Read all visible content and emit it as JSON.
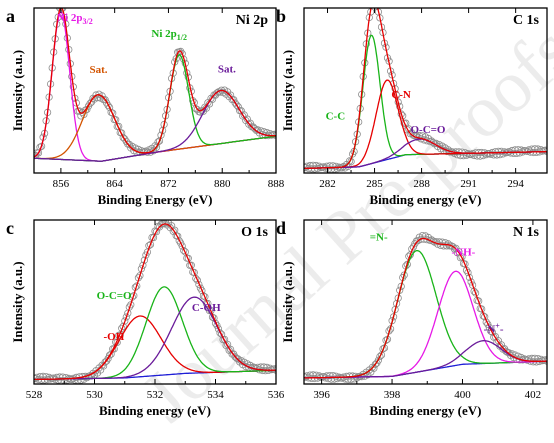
{
  "watermark": "Journal Pre-proofs",
  "chart_data": [
    {
      "type": "line",
      "panel": "a",
      "title": "Ni 2p",
      "xlabel": "Binding Energy (eV)",
      "ylabel": "Intensity (a.u.)",
      "xlim": [
        852,
        888
      ],
      "xticks": [
        856,
        864,
        872,
        880,
        888
      ],
      "x_tick_labels": [
        "856",
        "864",
        "872",
        "880",
        "888"
      ],
      "peaks": [
        {
          "name": "Ni 2p3/2",
          "label": "Ni 2p3/2",
          "center": 856.0,
          "height": 1.0,
          "width": 1.3,
          "color": "#e619e6"
        },
        {
          "name": "Sat. (2p3/2)",
          "label": "Sat.",
          "center": 861.6,
          "height": 0.45,
          "width": 2.4,
          "color": "#d35400"
        },
        {
          "name": "Ni 2p1/2",
          "label": "Ni 2p1/2",
          "center": 873.6,
          "height": 0.64,
          "width": 1.4,
          "color": "#19b419"
        },
        {
          "name": "Sat. (2p1/2)",
          "label": "Sat.",
          "center": 879.8,
          "height": 0.36,
          "width": 2.7,
          "color": "#6a1b9a"
        }
      ],
      "baseline": [
        {
          "x": 852,
          "y": 0.1
        },
        {
          "x": 862,
          "y": 0.08
        },
        {
          "x": 870,
          "y": 0.14
        },
        {
          "x": 888,
          "y": 0.25
        }
      ],
      "baseline_color": "#6a1b9a"
    },
    {
      "type": "line",
      "panel": "b",
      "title": "C 1s",
      "xlabel": "Binding energy (eV)",
      "ylabel": "Intensity (a.u.)",
      "xlim": [
        280.5,
        296
      ],
      "xticks": [
        282,
        285,
        288,
        291,
        294
      ],
      "x_tick_labels": [
        "282",
        "285",
        "288",
        "291",
        "294"
      ],
      "peaks": [
        {
          "name": "C-C",
          "label": "C-C",
          "center": 284.8,
          "height": 0.84,
          "width": 0.55,
          "color": "#19b419"
        },
        {
          "name": "C-N",
          "label": "C-N",
          "center": 285.8,
          "height": 0.52,
          "width": 0.7,
          "color": "#e60000"
        },
        {
          "name": "O-C=O",
          "label": "O-C=O",
          "center": 287.9,
          "height": 0.1,
          "width": 1.0,
          "color": "#6a1b9a"
        }
      ],
      "baseline": [
        {
          "x": 280.5,
          "y": 0.03
        },
        {
          "x": 284,
          "y": 0.04
        },
        {
          "x": 287,
          "y": 0.12
        },
        {
          "x": 296,
          "y": 0.14
        }
      ],
      "baseline_color": "#1f1fd6"
    },
    {
      "type": "line",
      "panel": "c",
      "title": "O 1s",
      "xlabel": "Binding energy (eV)",
      "ylabel": "Intensity (a.u.)",
      "xlim": [
        528,
        536
      ],
      "xticks": [
        528,
        530,
        532,
        534,
        536
      ],
      "x_tick_labels": [
        "528",
        "530",
        "532",
        "534",
        "536"
      ],
      "peaks": [
        {
          "name": "-OH",
          "label": "-OH",
          "center": 531.5,
          "height": 0.4,
          "width": 0.7,
          "color": "#e60000"
        },
        {
          "name": "O-C=O",
          "label": "O-C=O",
          "center": 532.3,
          "height": 0.58,
          "width": 0.6,
          "color": "#19b419"
        },
        {
          "name": "C-OH",
          "label": "C-OH",
          "center": 533.3,
          "height": 0.5,
          "width": 0.75,
          "color": "#6a1b9a"
        }
      ],
      "baseline": [
        {
          "x": 528,
          "y": 0.03
        },
        {
          "x": 531,
          "y": 0.04
        },
        {
          "x": 533,
          "y": 0.07
        },
        {
          "x": 536,
          "y": 0.09
        }
      ],
      "baseline_color": "#1f1fd6"
    },
    {
      "type": "line",
      "panel": "d",
      "title": "N 1s",
      "xlabel": "Binding energy (eV)",
      "ylabel": "Intensity (a.u.)",
      "xlim": [
        395.5,
        402.4
      ],
      "xticks": [
        396,
        398,
        400,
        402
      ],
      "x_tick_labels": [
        "396",
        "398",
        "400",
        "402"
      ],
      "peaks": [
        {
          "name": "=N-",
          "label": "=N-",
          "center": 398.7,
          "height": 0.8,
          "width": 0.55,
          "color": "#19b419"
        },
        {
          "name": "-NH-",
          "label": "-NH-",
          "center": 399.8,
          "height": 0.62,
          "width": 0.5,
          "color": "#e619e6"
        },
        {
          "name": "-N+-",
          "label": "-N+-",
          "center": 400.6,
          "height": 0.15,
          "width": 0.5,
          "color": "#6a1b9a"
        }
      ],
      "baseline": [
        {
          "x": 395.5,
          "y": 0.04
        },
        {
          "x": 398,
          "y": 0.05
        },
        {
          "x": 400,
          "y": 0.13
        },
        {
          "x": 402.4,
          "y": 0.15
        }
      ],
      "baseline_color": "#1f1fd6"
    }
  ]
}
